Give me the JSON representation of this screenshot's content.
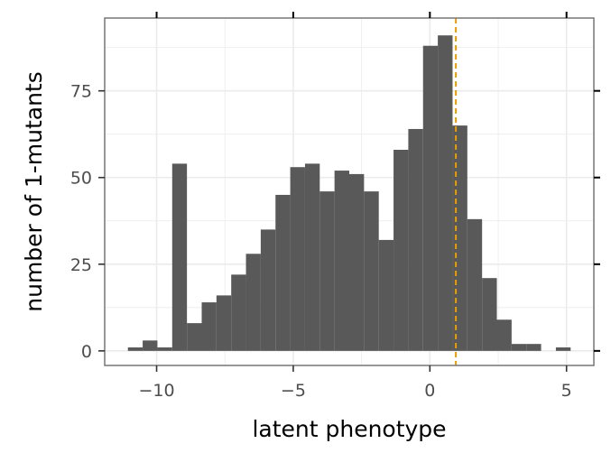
{
  "chart_data": {
    "type": "bar",
    "xlabel": "latent phenotype",
    "ylabel": "number of 1-mutants",
    "xlim": [
      -11.9,
      6.0
    ],
    "ylim": [
      -4.2,
      96.0
    ],
    "x_ticks": [
      -10,
      -5,
      0,
      5
    ],
    "x_tick_labels": [
      "−10",
      "−5",
      "0",
      "5"
    ],
    "y_ticks": [
      0,
      25,
      50,
      75
    ],
    "y_tick_labels": [
      "0",
      "25",
      "50",
      "75"
    ],
    "x_minor_ticks": [
      -12.5,
      -7.5,
      -2.5,
      2.5
    ],
    "y_minor_ticks": [
      12.5,
      37.5,
      62.5,
      87.5
    ],
    "grid": true,
    "bin_width": 0.54,
    "bin_start": -11.05,
    "bins": [
      {
        "x": -10.78,
        "count": 1
      },
      {
        "x": -10.24,
        "count": 3
      },
      {
        "x": -9.7,
        "count": 1
      },
      {
        "x": -9.16,
        "count": 54
      },
      {
        "x": -8.62,
        "count": 8
      },
      {
        "x": -8.08,
        "count": 14
      },
      {
        "x": -7.54,
        "count": 16
      },
      {
        "x": -7.0,
        "count": 22
      },
      {
        "x": -6.46,
        "count": 28
      },
      {
        "x": -5.92,
        "count": 35
      },
      {
        "x": -5.38,
        "count": 45
      },
      {
        "x": -4.84,
        "count": 53
      },
      {
        "x": -4.3,
        "count": 54
      },
      {
        "x": -3.76,
        "count": 46
      },
      {
        "x": -3.22,
        "count": 52
      },
      {
        "x": -2.68,
        "count": 51
      },
      {
        "x": -2.14,
        "count": 46
      },
      {
        "x": -1.6,
        "count": 32
      },
      {
        "x": -1.06,
        "count": 58
      },
      {
        "x": -0.52,
        "count": 64
      },
      {
        "x": 0.02,
        "count": 88
      },
      {
        "x": 0.56,
        "count": 91
      },
      {
        "x": 1.1,
        "count": 65
      },
      {
        "x": 1.64,
        "count": 38
      },
      {
        "x": 2.18,
        "count": 21
      },
      {
        "x": 2.72,
        "count": 9
      },
      {
        "x": 3.26,
        "count": 2
      },
      {
        "x": 3.8,
        "count": 2
      },
      {
        "x": 4.34,
        "count": 0
      },
      {
        "x": 4.88,
        "count": 1
      }
    ],
    "reference_line": {
      "x": 0.95,
      "color": "#E69F00",
      "style": "dashed"
    },
    "bar_color": "#595959",
    "panel_border_color": "#7f7f7f",
    "grid_color": "#ebebeb"
  }
}
